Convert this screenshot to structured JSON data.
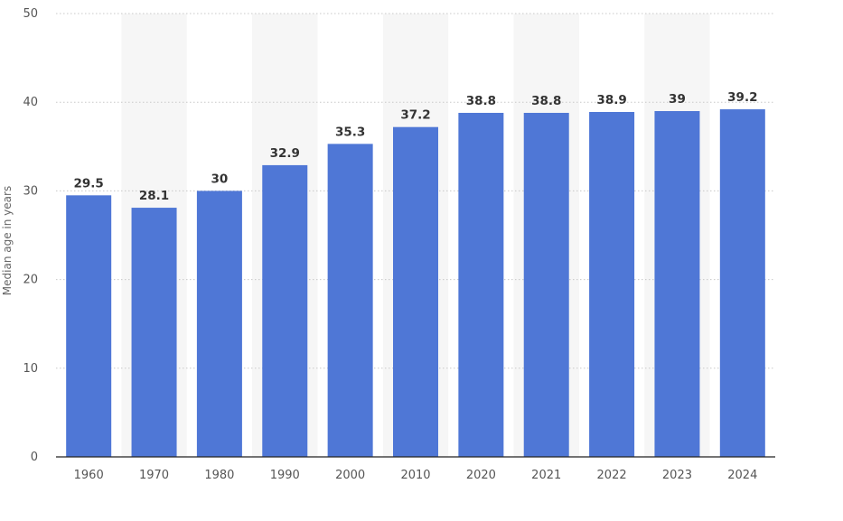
{
  "chart_data": {
    "type": "bar",
    "categories": [
      "1960",
      "1970",
      "1980",
      "1990",
      "2000",
      "2010",
      "2020",
      "2021",
      "2022",
      "2023",
      "2024"
    ],
    "values": [
      29.5,
      28.1,
      30,
      32.9,
      35.3,
      37.2,
      38.8,
      38.8,
      38.9,
      39,
      39.2
    ],
    "data_labels": [
      "29.5",
      "28.1",
      "30",
      "32.9",
      "35.3",
      "37.2",
      "38.8",
      "38.8",
      "38.9",
      "39",
      "39.2"
    ],
    "title": "",
    "xlabel": "",
    "ylabel": "Median age in years",
    "ylim": [
      0,
      50
    ],
    "yticks": [
      "0",
      "10",
      "20",
      "30",
      "40",
      "50"
    ],
    "grid": true,
    "bar_color": "#4f77d6"
  }
}
